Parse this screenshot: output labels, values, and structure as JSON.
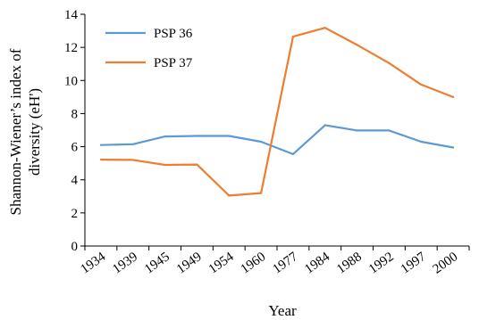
{
  "chart_data": {
    "type": "line",
    "categories": [
      "1934",
      "1939",
      "1945",
      "1949",
      "1954",
      "1960",
      "1977",
      "1984",
      "1988",
      "1992",
      "1997",
      "2000"
    ],
    "series": [
      {
        "name": "PSP 36",
        "color": "#5b9bd5",
        "values": [
          6.1,
          6.15,
          6.62,
          6.65,
          6.65,
          6.3,
          5.55,
          7.3,
          6.98,
          6.98,
          6.3,
          5.95
        ]
      },
      {
        "name": "PSP 37",
        "color": "#ed7d31",
        "values": [
          5.22,
          5.2,
          4.9,
          4.92,
          3.05,
          3.2,
          12.65,
          13.18,
          12.15,
          11.05,
          9.75,
          9.0
        ]
      }
    ],
    "ylim": [
      0,
      14
    ],
    "yticks": [
      "0",
      "2",
      "4",
      "6",
      "8",
      "10",
      "12",
      "14"
    ],
    "xlabel": "Year",
    "ylabel_lines": [
      "Shannon-Wiener’s index of",
      "diversity (eH')"
    ],
    "grid": false,
    "legend_position": "top-left"
  }
}
